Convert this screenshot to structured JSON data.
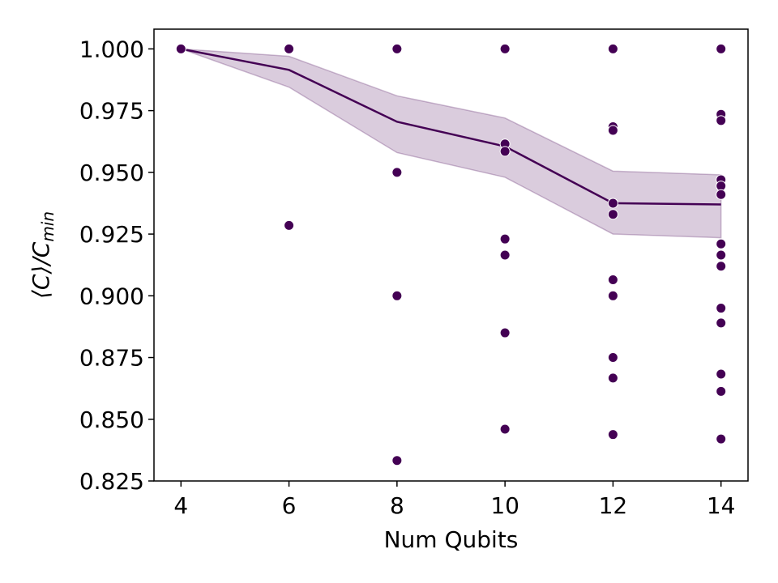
{
  "chart_data": {
    "type": "scatter",
    "xlabel": "Num Qubits",
    "ylabel": "⟨C⟩/C_min",
    "xlim": [
      3.5,
      14.5
    ],
    "ylim": [
      0.825,
      1.008
    ],
    "xticks": [
      4,
      6,
      8,
      10,
      12,
      14
    ],
    "yticks": [
      1.0,
      0.975,
      0.95,
      0.925,
      0.9,
      0.875,
      0.85,
      0.825
    ],
    "grid": false,
    "colors": {
      "series": "#440154",
      "band": "#440154"
    },
    "mean_line": {
      "x": [
        4,
        6,
        8,
        10,
        12,
        14
      ],
      "y": [
        1.0,
        0.9915,
        0.9705,
        0.9605,
        0.9375,
        0.937
      ]
    },
    "confidence_band": {
      "x": [
        4,
        6,
        8,
        10,
        12,
        14
      ],
      "lower": [
        1.0,
        0.9845,
        0.958,
        0.948,
        0.925,
        0.9235
      ],
      "upper": [
        1.0,
        0.997,
        0.981,
        0.972,
        0.9505,
        0.949
      ]
    },
    "points": [
      {
        "x": 4,
        "y": 1.0
      },
      {
        "x": 6,
        "y": 1.0
      },
      {
        "x": 6,
        "y": 0.9285
      },
      {
        "x": 8,
        "y": 1.0
      },
      {
        "x": 8,
        "y": 0.95
      },
      {
        "x": 8,
        "y": 0.9
      },
      {
        "x": 8,
        "y": 0.8333
      },
      {
        "x": 10,
        "y": 1.0
      },
      {
        "x": 10,
        "y": 0.9615
      },
      {
        "x": 10,
        "y": 0.9585
      },
      {
        "x": 10,
        "y": 0.923
      },
      {
        "x": 10,
        "y": 0.9165
      },
      {
        "x": 10,
        "y": 0.885
      },
      {
        "x": 10,
        "y": 0.846
      },
      {
        "x": 12,
        "y": 1.0
      },
      {
        "x": 12,
        "y": 0.9685
      },
      {
        "x": 12,
        "y": 0.967
      },
      {
        "x": 12,
        "y": 0.9375
      },
      {
        "x": 12,
        "y": 0.933
      },
      {
        "x": 12,
        "y": 0.9065
      },
      {
        "x": 12,
        "y": 0.9
      },
      {
        "x": 12,
        "y": 0.875
      },
      {
        "x": 12,
        "y": 0.8667
      },
      {
        "x": 12,
        "y": 0.8438
      },
      {
        "x": 14,
        "y": 1.0
      },
      {
        "x": 14,
        "y": 0.9735
      },
      {
        "x": 14,
        "y": 0.971
      },
      {
        "x": 14,
        "y": 0.947
      },
      {
        "x": 14,
        "y": 0.9445
      },
      {
        "x": 14,
        "y": 0.941
      },
      {
        "x": 14,
        "y": 0.921
      },
      {
        "x": 14,
        "y": 0.9165
      },
      {
        "x": 14,
        "y": 0.912
      },
      {
        "x": 14,
        "y": 0.895
      },
      {
        "x": 14,
        "y": 0.889
      },
      {
        "x": 14,
        "y": 0.8683
      },
      {
        "x": 14,
        "y": 0.8613
      },
      {
        "x": 14,
        "y": 0.842
      }
    ]
  },
  "labels": {
    "xlabel": "Num Qubits",
    "ylabel_main": "⟨C⟩/C",
    "ylabel_sub": "min"
  }
}
